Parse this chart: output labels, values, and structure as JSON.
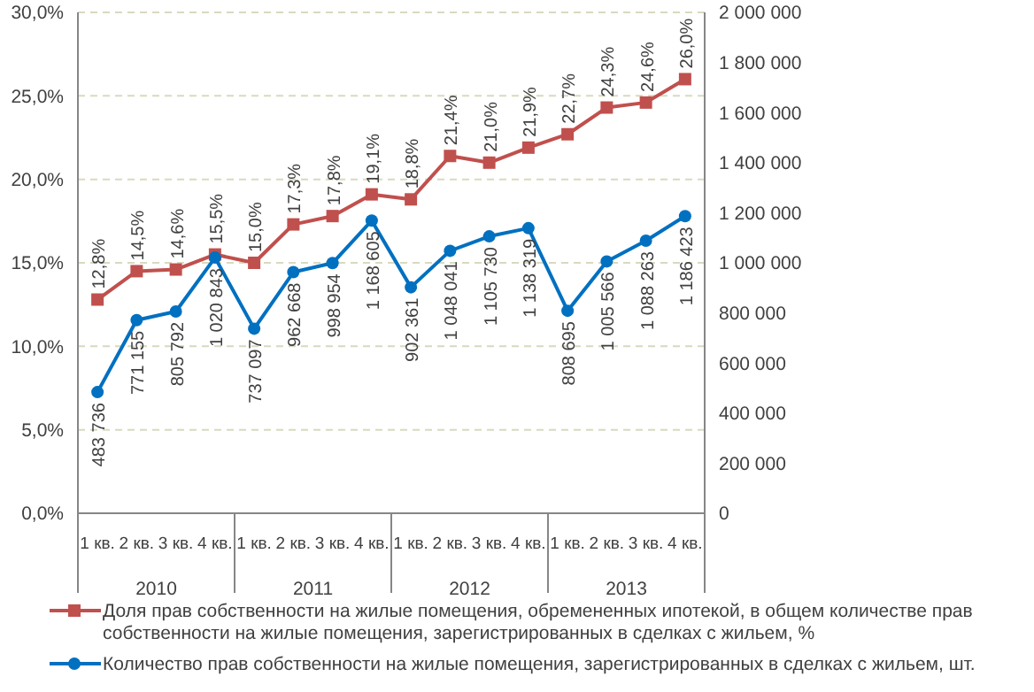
{
  "chart_data": {
    "type": "line",
    "categories": [
      "1 кв.",
      "2 кв.",
      "3 кв.",
      "4 кв.",
      "1 кв.",
      "2 кв.",
      "3 кв.",
      "4 кв.",
      "1 кв.",
      "2 кв.",
      "3 кв.",
      "4 кв.",
      "1 кв.",
      "2 кв.",
      "3 кв.",
      "4 кв."
    ],
    "annotations": [
      "2010",
      "2011",
      "2012",
      "2013"
    ],
    "series": [
      {
        "name": "Доля прав собственности на жилые помещения, обремененных ипотекой, в общем количестве прав собственности на жилые помещения, зарегистрированных в сделках с жильем, %",
        "color": "#c0504d",
        "marker": "square",
        "values": [
          12.8,
          14.5,
          14.6,
          15.5,
          15.0,
          17.3,
          17.8,
          19.1,
          18.8,
          21.4,
          21.0,
          21.9,
          22.7,
          24.3,
          24.6,
          26.0
        ],
        "value_labels": [
          "12,8%",
          "14,5%",
          "14,6%",
          "15,5%",
          "15,0%",
          "17,3%",
          "17,8%",
          "19,1%",
          "18,8%",
          "21,4%",
          "21,0%",
          "21,9%",
          "22,7%",
          "24,3%",
          "24,6%",
          "26,0%"
        ]
      },
      {
        "name": "Количество прав собственности на жилые помещения, зарегистрированных в сделках с жильем, шт.",
        "color": "#0070c0",
        "marker": "circle",
        "axis": "y2",
        "values": [
          483736,
          771155,
          805792,
          1020843,
          737097,
          962668,
          998954,
          1168605,
          902361,
          1048041,
          1105730,
          1138319,
          808695,
          1005566,
          1088263,
          1186423
        ],
        "value_labels": [
          "483 736",
          "771 155",
          "805 792",
          "1 020 843",
          "737 097",
          "962 668",
          "998 954",
          "1 168 605",
          "902 361",
          "1 048 041",
          "1 105 730",
          "1 138 319",
          "808 695",
          "1 005 566",
          "1 088 263",
          "1 186 423"
        ]
      }
    ],
    "ylim": [
      0,
      30
    ],
    "yticks": [
      {
        "value": 0,
        "label": "0,0%"
      },
      {
        "value": 5,
        "label": "5,0%"
      },
      {
        "value": 10,
        "label": "10,0%"
      },
      {
        "value": 15,
        "label": "15,0%"
      },
      {
        "value": 20,
        "label": "20,0%"
      },
      {
        "value": 25,
        "label": "25,0%"
      },
      {
        "value": 30,
        "label": "30,0%"
      }
    ],
    "y2lim": [
      0,
      2000000
    ],
    "y2ticks": [
      0,
      {
        "value": 200000,
        "label": "200 000"
      },
      {
        "value": 400000,
        "label": "400 000"
      },
      {
        "value": 600000,
        "label": "600 000"
      },
      {
        "value": 800000,
        "label": "800 000"
      },
      {
        "value": 1000000,
        "label": "1 000 000"
      },
      {
        "value": 1200000,
        "label": "1 200 000"
      },
      {
        "value": 1400000,
        "label": "1 400 000"
      },
      {
        "value": 1600000,
        "label": "1 600 000"
      },
      {
        "value": 1800000,
        "label": "1 800 000"
      },
      {
        "value": 2000000,
        "label": "2 000 000"
      }
    ],
    "grid": "y",
    "legend": "bottom"
  }
}
